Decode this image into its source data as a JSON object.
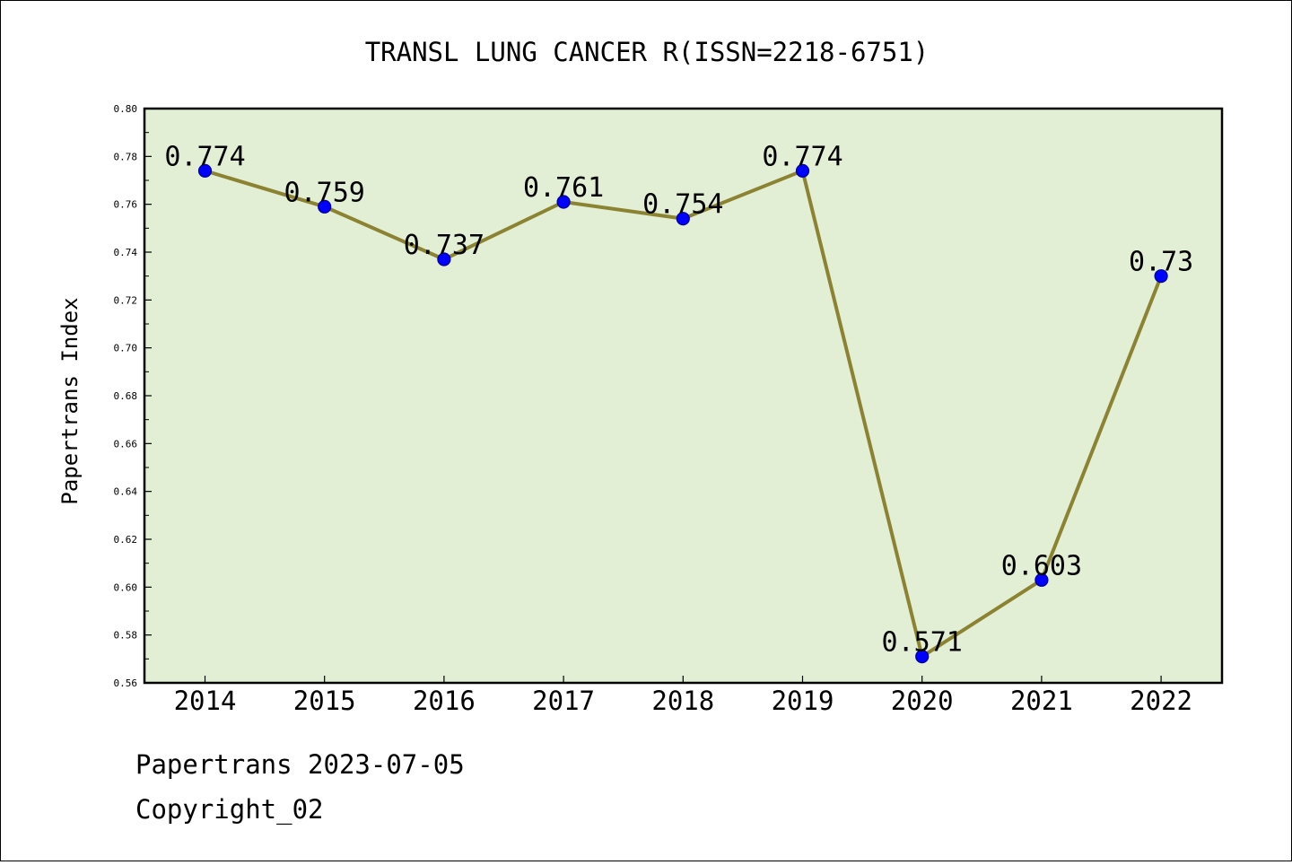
{
  "chart_data": {
    "type": "line",
    "title": "TRANSL LUNG CANCER R(ISSN=2218-6751)",
    "xlabel": "",
    "ylabel": "Papertrans Index",
    "categories": [
      "2014",
      "2015",
      "2016",
      "2017",
      "2018",
      "2019",
      "2020",
      "2021",
      "2022"
    ],
    "values": [
      0.774,
      0.759,
      0.737,
      0.761,
      0.754,
      0.774,
      0.571,
      0.603,
      0.73
    ],
    "data_labels": [
      "0.774",
      "0.759",
      "0.737",
      "0.761",
      "0.754",
      "0.774",
      "0.571",
      "0.603",
      "0.73"
    ],
    "ylim": [
      0.56,
      0.8
    ],
    "yticks": [
      "0.56",
      "0.58",
      "0.60",
      "0.62",
      "0.64",
      "0.66",
      "0.68",
      "0.70",
      "0.72",
      "0.74",
      "0.76",
      "0.78",
      "0.80"
    ],
    "grid": false,
    "legend": "none",
    "colors": {
      "plot_background": "#e2efd5",
      "line": "#8b8332",
      "marker": "#0000ff",
      "marker_edge": "#00008b"
    }
  },
  "footer": {
    "source": "Papertrans 2023-07-05",
    "copyright": "Copyright_02"
  }
}
